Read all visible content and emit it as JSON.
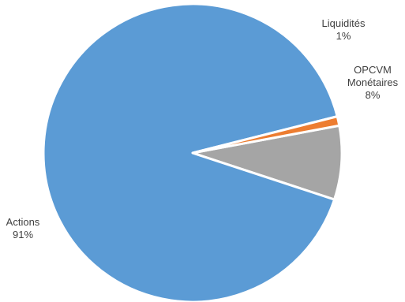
{
  "chart_data": {
    "type": "pie",
    "title": "",
    "slices": [
      {
        "label": "OPCVM Monétaires",
        "label_lines": [
          "OPCVM",
          "Monétaires"
        ],
        "value": 8,
        "value_label": "8%",
        "color": "#a5a5a5"
      },
      {
        "label": "Actions",
        "label_lines": [
          "Actions"
        ],
        "value": 91,
        "value_label": "91%",
        "color": "#5b9bd5"
      },
      {
        "label": "Liquidités",
        "label_lines": [
          "Liquidités"
        ],
        "value": 1,
        "value_label": "1%",
        "color": "#ed7d31"
      }
    ],
    "legend": "none",
    "data_labels": "outside"
  }
}
